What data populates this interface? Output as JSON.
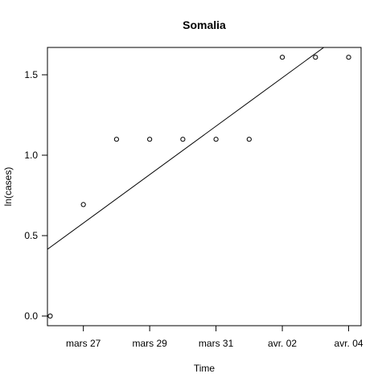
{
  "chart_data": {
    "type": "scatter",
    "title": "Somalia",
    "xlabel": "Time",
    "ylabel": "ln(cases)",
    "x": [
      "2020-03-26",
      "2020-03-27",
      "2020-03-28",
      "2020-03-29",
      "2020-03-30",
      "2020-03-31",
      "2020-04-01",
      "2020-04-02",
      "2020-04-03",
      "2020-04-04"
    ],
    "y": [
      0.0,
      0.693,
      1.099,
      1.099,
      1.099,
      1.099,
      1.099,
      1.609,
      1.609,
      1.609
    ],
    "xlim": [
      "2020-03-25T22:00",
      "2020-04-04T09:00"
    ],
    "ylim": [
      -0.06,
      1.67
    ],
    "x_ticks": [
      "2020-03-27",
      "2020-03-29",
      "2020-03-31",
      "2020-04-02",
      "2020-04-04"
    ],
    "x_tick_labels": [
      "mars 27",
      "mars 29",
      "mars 31",
      "avr. 02",
      "avr. 04"
    ],
    "y_ticks": [
      0.0,
      0.5,
      1.0,
      1.5
    ],
    "y_tick_labels": [
      "0.0",
      "0.5",
      "1.0",
      "1.5"
    ],
    "fit_line": {
      "type": "linear",
      "points": [
        {
          "x": "2020-03-25T22:00",
          "y": 0.415
        },
        {
          "x": "2020-04-03T06:00",
          "y": 1.67
        }
      ]
    },
    "grid": false,
    "legend": "none",
    "colors": {
      "points": "#000000",
      "line": "#000000",
      "axes": "#000000",
      "background": "#ffffff"
    }
  }
}
